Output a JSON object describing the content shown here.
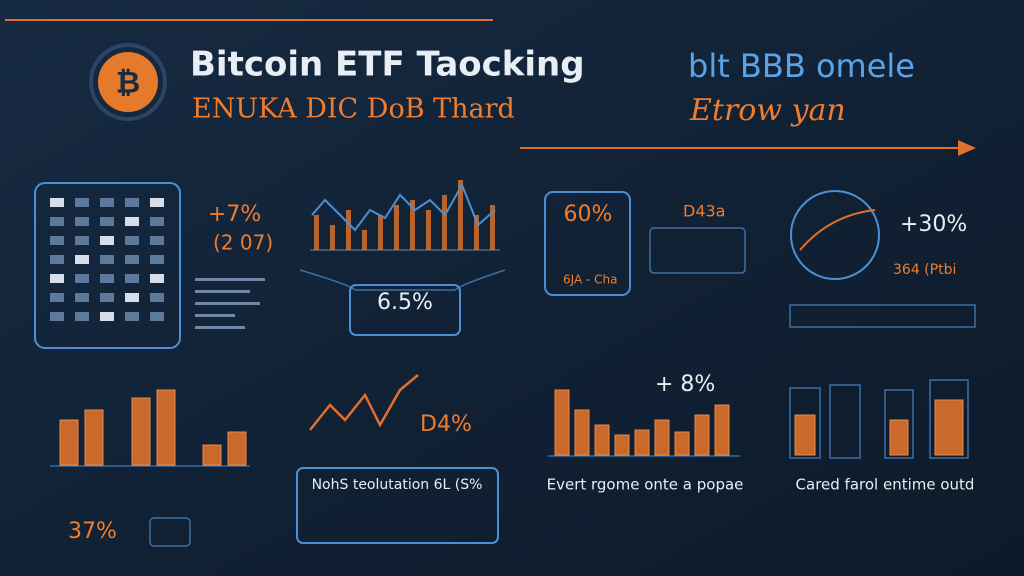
{
  "header": {
    "title": "Bitcoin ETF Taocking",
    "subtitle": "ENUKA DIC DoB Thard",
    "brand": "blt BBB omele",
    "tagline": "Etrow yan"
  },
  "panels": [
    {
      "value": "+7%",
      "note": "(2 07)"
    },
    {
      "value": "6.5%"
    },
    {
      "value": "60%",
      "label": "D43a",
      "note": "6JA - Cha"
    },
    {
      "value": "+30%",
      "note": "364 (Ptbi"
    }
  ],
  "bottom": [
    {
      "value": "37%"
    },
    {
      "value": "D4%",
      "caption": "NohS teolutation 6L (S%"
    },
    {
      "value": "+ 8%",
      "caption": "Evert rgome onte a popae"
    },
    {
      "caption": "Cared farol entime outd"
    }
  ]
}
